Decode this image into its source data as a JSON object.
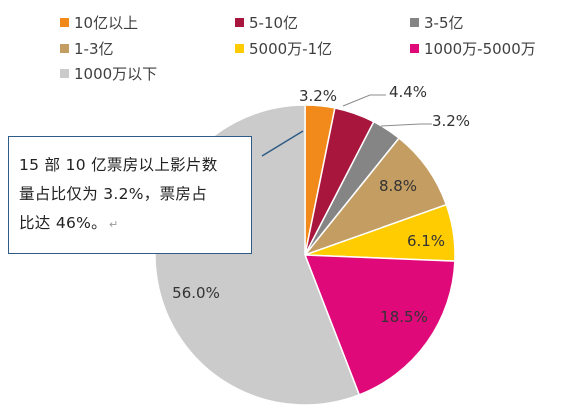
{
  "chart_data": {
    "type": "pie",
    "title": "",
    "categories": [
      "10亿以上",
      "5-10亿",
      "3-5亿",
      "1-3亿",
      "5000万-1亿",
      "1000万-5000万",
      "1000万以下"
    ],
    "values": [
      3.2,
      4.4,
      3.2,
      8.8,
      6.1,
      18.5,
      56.0
    ],
    "value_labels": [
      "3.2%",
      "4.4%",
      "3.2%",
      "8.8%",
      "6.1%",
      "18.5%",
      "56.0%"
    ],
    "colors": [
      "#f28a1b",
      "#a8163d",
      "#858585",
      "#c49d63",
      "#fecc00",
      "#e0097a",
      "#cbcbcb"
    ],
    "legend_position": "top",
    "start_angle": "12 o'clock, clockwise"
  },
  "annotation": {
    "line1": "15 部 10 亿票房以上影片数",
    "line2": "量占比仅为 3.2%，票房占",
    "line3": "比达 46%。",
    "mark": "↵"
  }
}
